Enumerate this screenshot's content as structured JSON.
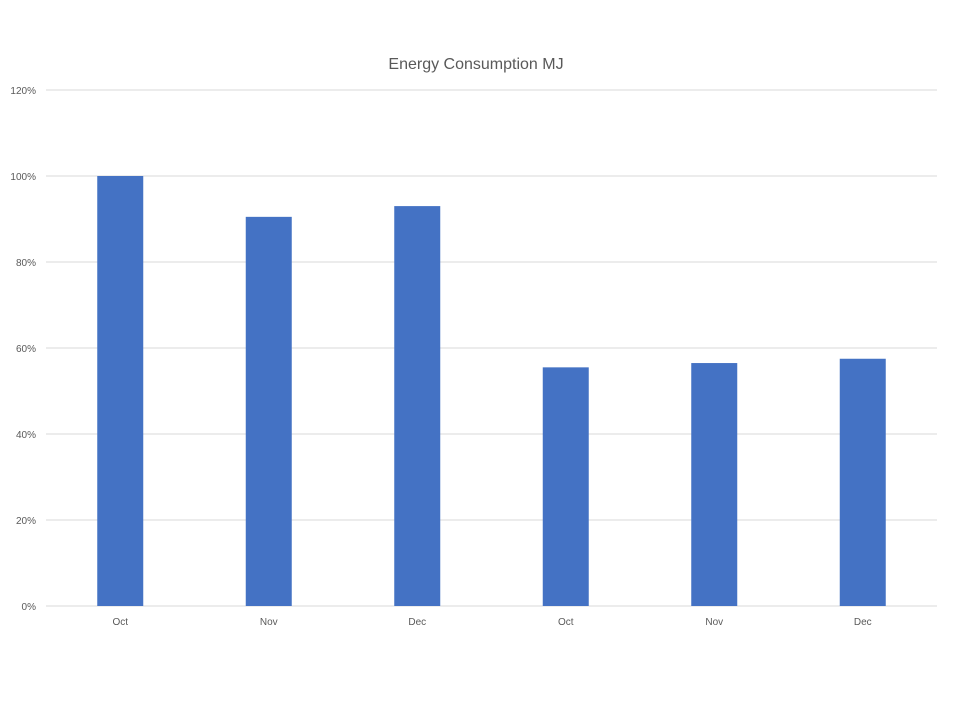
{
  "chart_data": {
    "type": "bar",
    "title": "Energy Consumption MJ",
    "xlabel": "",
    "ylabel": "",
    "categories": [
      "Oct",
      "Nov",
      "Dec",
      "Oct",
      "Nov",
      "Dec"
    ],
    "values": [
      100,
      90.5,
      93,
      55.5,
      56.5,
      57.5
    ],
    "ylim": [
      0,
      120
    ],
    "yticks": [
      "0%",
      "20%",
      "40%",
      "60%",
      "80%",
      "100%",
      "120%"
    ],
    "ytick_values": [
      0,
      20,
      40,
      60,
      80,
      100,
      120
    ],
    "grid": true,
    "legend": "none",
    "bar_color": "#4472C4"
  }
}
